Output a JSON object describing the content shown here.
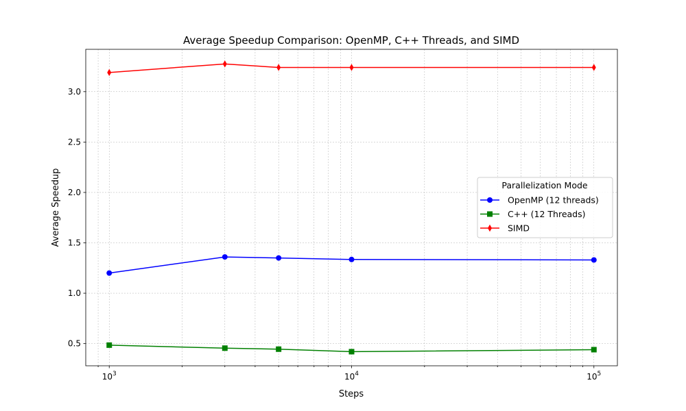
{
  "chart_data": {
    "type": "line",
    "title": "Average Speedup Comparison: OpenMP, C++ Threads, and SIMD",
    "xlabel": "Steps",
    "ylabel": "Average Speedup",
    "xscale": "log",
    "xlim": [
      800,
      125000
    ],
    "ylim": [
      0.28,
      3.42
    ],
    "x_ticks": [
      {
        "value": 1000,
        "base": "10",
        "exp": "3"
      },
      {
        "value": 10000,
        "base": "10",
        "exp": "4"
      },
      {
        "value": 100000,
        "base": "10",
        "exp": "5"
      }
    ],
    "y_ticks": [
      {
        "value": 0.5,
        "label": "0.5"
      },
      {
        "value": 1.0,
        "label": "1.0"
      },
      {
        "value": 1.5,
        "label": "1.5"
      },
      {
        "value": 2.0,
        "label": "2.0"
      },
      {
        "value": 2.5,
        "label": "2.5"
      },
      {
        "value": 3.0,
        "label": "3.0"
      }
    ],
    "grid": true,
    "x": [
      1000,
      3000,
      5000,
      10000,
      100000
    ],
    "series": [
      {
        "name": "OpenMP (12 threads)",
        "color": "#0000ff",
        "marker": "circle",
        "values": [
          1.2,
          1.36,
          1.35,
          1.335,
          1.33
        ]
      },
      {
        "name": "C++ (12 Threads)",
        "color": "#008000",
        "marker": "square",
        "values": [
          0.485,
          0.455,
          0.445,
          0.42,
          0.44
        ]
      },
      {
        "name": "SIMD",
        "color": "#ff0000",
        "marker": "diamond",
        "values": [
          3.19,
          3.275,
          3.24,
          3.24,
          3.24
        ]
      }
    ],
    "legend": {
      "title": "Parallelization Mode",
      "placement": "center-right"
    }
  }
}
